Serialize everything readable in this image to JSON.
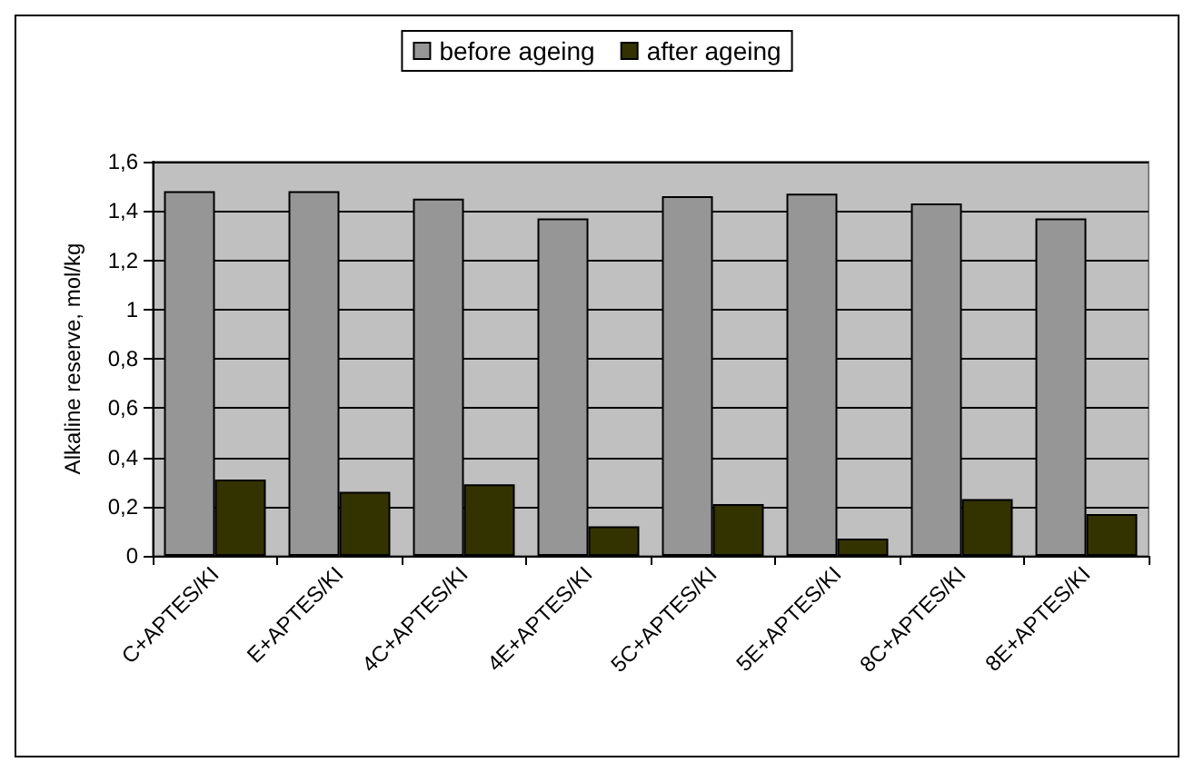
{
  "chart_data": {
    "type": "bar",
    "ylabel": "Alkaline reserve, mol/kg",
    "categories": [
      "C+APTES/KI",
      "E+APTES/KI",
      "4C+APTES/KI",
      "4E+APTES/KI",
      "5C+APTES/KI",
      "5E+APTES/KI",
      "8C+APTES/KI",
      "8E+APTES/KI"
    ],
    "series": [
      {
        "name": "before ageing",
        "color": "#969696",
        "values": [
          1.48,
          1.48,
          1.45,
          1.37,
          1.46,
          1.47,
          1.43,
          1.37
        ]
      },
      {
        "name": "after ageing",
        "color": "#333300",
        "values": [
          0.31,
          0.26,
          0.29,
          0.12,
          0.21,
          0.07,
          0.23,
          0.17
        ]
      }
    ],
    "ylim": [
      0,
      1.6
    ],
    "yticks": [
      0,
      {
        "value": 0.2,
        "label": "0,2"
      },
      {
        "value": 0.4,
        "label": "0,4"
      },
      {
        "value": 0.6,
        "label": "0,6"
      },
      {
        "value": 0.8,
        "label": "0,8"
      },
      1,
      {
        "value": 1.2,
        "label": "1,2"
      },
      {
        "value": 1.4,
        "label": "1,4"
      },
      {
        "value": 1.6,
        "label": "1,6"
      }
    ],
    "grid": "y",
    "legend": "top"
  }
}
